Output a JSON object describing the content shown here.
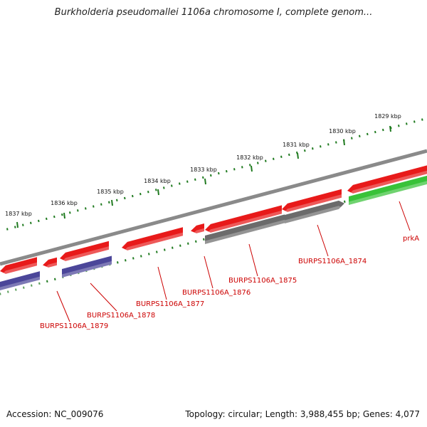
{
  "title": "Burkholderia pseudomallei 1106a chromosome I, complete genom...",
  "footer": {
    "accession": "Accession: NC_009076",
    "summary": "Topology: circular; Length: 3,988,455 bp; Genes: 4,077"
  },
  "colors": {
    "backbone": "#8a8a8a",
    "forward_gene": "#e81a1a",
    "forward_gene_alt": "#e81a1a",
    "reverse_gene_blue": "#4b4699",
    "reverse_gene_gray": "#6b6b6b",
    "reverse_gene_green": "#39c239",
    "ticks": "#1f7a1f",
    "labels": "#cc0000"
  },
  "scale_ticks": [
    {
      "label": "1837 kbp"
    },
    {
      "label": "1836 kbp"
    },
    {
      "label": "1835 kbp"
    },
    {
      "label": "1834 kbp"
    },
    {
      "label": "1833 kbp"
    },
    {
      "label": "1832 kbp"
    },
    {
      "label": "1831 kbp"
    },
    {
      "label": "1830 kbp"
    },
    {
      "label": "1829 kbp"
    }
  ],
  "gene_labels": [
    {
      "name": "BURPS1106A_1879"
    },
    {
      "name": "BURPS1106A_1878"
    },
    {
      "name": "BURPS1106A_1877"
    },
    {
      "name": "BURPS1106A_1876"
    },
    {
      "name": "BURPS1106A_1875"
    },
    {
      "name": "BURPS1106A_1874"
    },
    {
      "name": "prkA"
    }
  ]
}
